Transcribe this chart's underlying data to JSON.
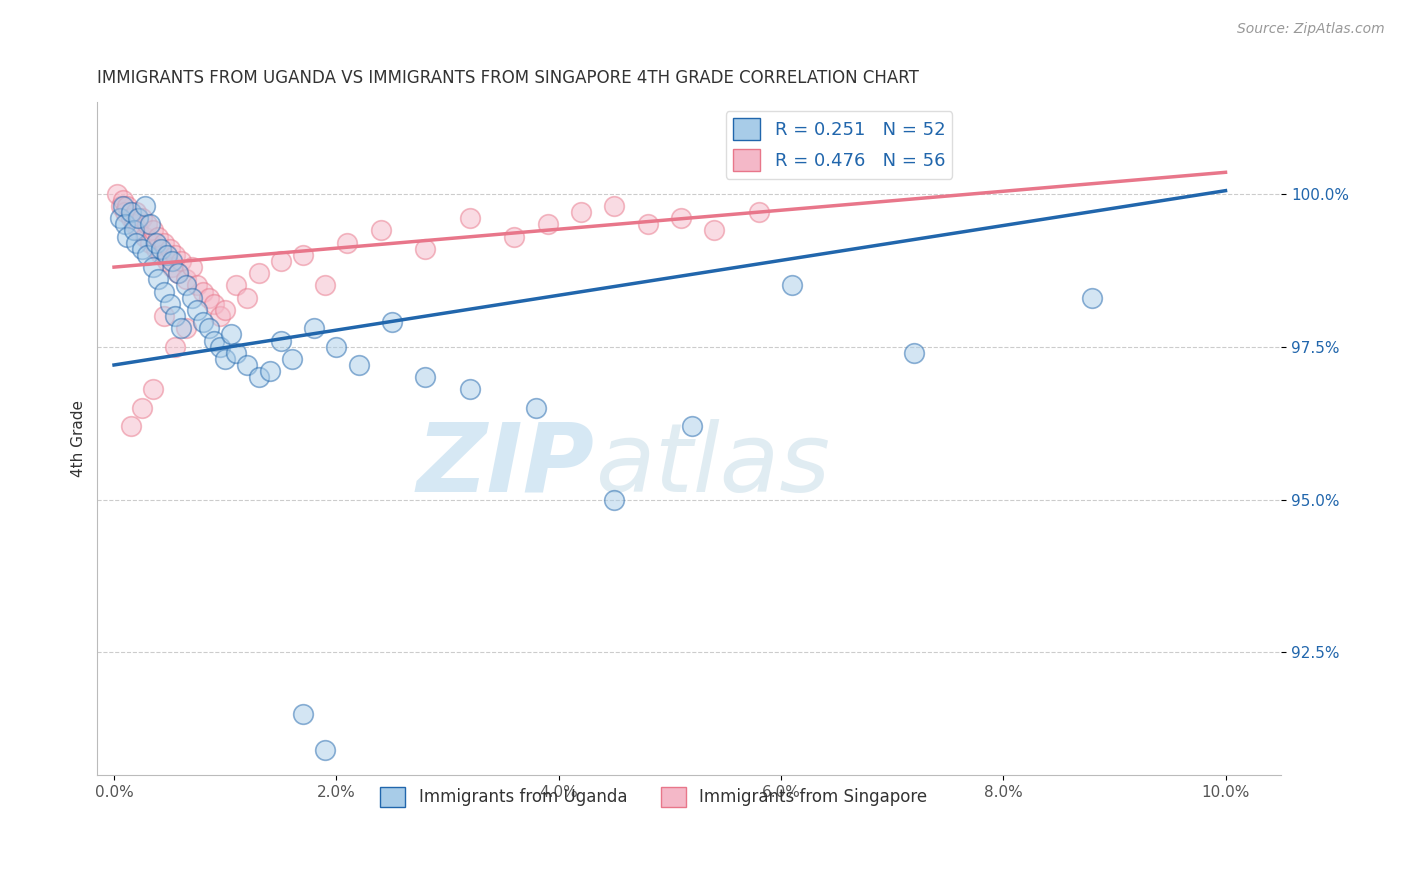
{
  "title": "IMMIGRANTS FROM UGANDA VS IMMIGRANTS FROM SINGAPORE 4TH GRADE CORRELATION CHART",
  "source": "Source: ZipAtlas.com",
  "ylabel": "4th Grade",
  "xlim": [
    -0.15,
    10.5
  ],
  "ylim": [
    90.5,
    101.5
  ],
  "yticks": [
    92.5,
    95.0,
    97.5,
    100.0
  ],
  "ytick_labels": [
    "92.5%",
    "95.0%",
    "97.5%",
    "100.0%"
  ],
  "xticks": [
    0.0,
    2.0,
    4.0,
    6.0,
    8.0,
    10.0
  ],
  "xtick_labels": [
    "0.0%",
    "2.0%",
    "4.0%",
    "6.0%",
    "8.0%",
    "10.0%"
  ],
  "legend_label1": "R = 0.251   N = 52",
  "legend_label2": "R = 0.476   N = 56",
  "legend_item1": "Immigrants from Uganda",
  "legend_item2": "Immigrants from Singapore",
  "color_blue": "#a8cce8",
  "color_pink": "#f4b8c8",
  "line_blue": "#2166ac",
  "line_pink": "#e8768a",
  "R_blue": 0.251,
  "N_blue": 52,
  "R_pink": 0.476,
  "N_pink": 56,
  "blue_line_x0": 0.0,
  "blue_line_y0": 97.2,
  "blue_line_x1": 10.0,
  "blue_line_y1": 100.05,
  "pink_line_x0": 0.0,
  "pink_line_y0": 98.8,
  "pink_line_x1": 10.0,
  "pink_line_y1": 100.35,
  "blue_scatter_x": [
    0.05,
    0.08,
    0.1,
    0.12,
    0.15,
    0.18,
    0.2,
    0.22,
    0.25,
    0.28,
    0.3,
    0.32,
    0.35,
    0.38,
    0.4,
    0.42,
    0.45,
    0.48,
    0.5,
    0.52,
    0.55,
    0.58,
    0.6,
    0.65,
    0.7,
    0.75,
    0.8,
    0.85,
    0.9,
    0.95,
    1.0,
    1.05,
    1.1,
    1.2,
    1.3,
    1.4,
    1.5,
    1.6,
    1.8,
    2.0,
    2.2,
    2.5,
    2.8,
    3.2,
    3.8,
    4.5,
    5.2,
    6.1,
    7.2,
    8.8,
    1.7,
    1.9
  ],
  "blue_scatter_y": [
    99.6,
    99.8,
    99.5,
    99.3,
    99.7,
    99.4,
    99.2,
    99.6,
    99.1,
    99.8,
    99.0,
    99.5,
    98.8,
    99.2,
    98.6,
    99.1,
    98.4,
    99.0,
    98.2,
    98.9,
    98.0,
    98.7,
    97.8,
    98.5,
    98.3,
    98.1,
    97.9,
    97.8,
    97.6,
    97.5,
    97.3,
    97.7,
    97.4,
    97.2,
    97.0,
    97.1,
    97.6,
    97.3,
    97.8,
    97.5,
    97.2,
    97.9,
    97.0,
    96.8,
    96.5,
    95.0,
    96.2,
    98.5,
    97.4,
    98.3,
    91.5,
    90.9
  ],
  "pink_scatter_x": [
    0.03,
    0.06,
    0.08,
    0.1,
    0.12,
    0.15,
    0.18,
    0.2,
    0.22,
    0.25,
    0.28,
    0.3,
    0.32,
    0.35,
    0.38,
    0.4,
    0.42,
    0.45,
    0.48,
    0.5,
    0.52,
    0.55,
    0.58,
    0.6,
    0.65,
    0.7,
    0.75,
    0.8,
    0.85,
    0.9,
    0.95,
    1.0,
    1.1,
    1.2,
    1.3,
    1.5,
    1.7,
    1.9,
    2.1,
    2.4,
    2.8,
    3.2,
    3.6,
    3.9,
    4.2,
    4.5,
    4.8,
    5.1,
    5.4,
    5.8,
    0.45,
    0.55,
    0.65,
    0.35,
    0.25,
    0.15
  ],
  "pink_scatter_y": [
    100.0,
    99.8,
    99.9,
    99.7,
    99.8,
    99.6,
    99.5,
    99.7,
    99.4,
    99.6,
    99.3,
    99.5,
    99.2,
    99.4,
    99.1,
    99.3,
    99.0,
    99.2,
    98.9,
    99.1,
    98.8,
    99.0,
    98.7,
    98.9,
    98.6,
    98.8,
    98.5,
    98.4,
    98.3,
    98.2,
    98.0,
    98.1,
    98.5,
    98.3,
    98.7,
    98.9,
    99.0,
    98.5,
    99.2,
    99.4,
    99.1,
    99.6,
    99.3,
    99.5,
    99.7,
    99.8,
    99.5,
    99.6,
    99.4,
    99.7,
    98.0,
    97.5,
    97.8,
    96.8,
    96.5,
    96.2
  ]
}
